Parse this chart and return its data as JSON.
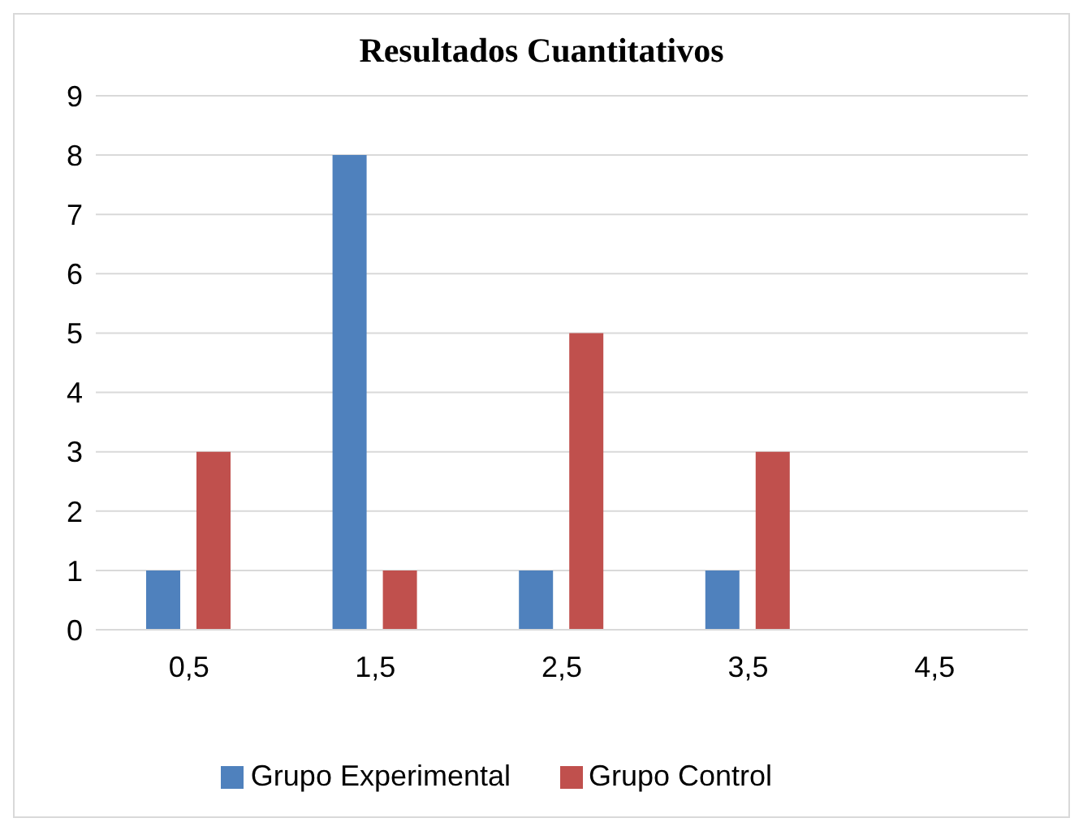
{
  "chart_data": {
    "type": "bar",
    "title": "Resultados Cuantitativos",
    "categories": [
      "0,5",
      "1,5",
      "2,5",
      "3,5",
      "4,5"
    ],
    "series": [
      {
        "name": "Grupo Experimental",
        "color": "#4f81bd",
        "values": [
          1,
          8,
          1,
          1,
          0
        ]
      },
      {
        "name": "Grupo Control",
        "color": "#c0504d",
        "values": [
          3,
          1,
          5,
          3,
          0
        ]
      }
    ],
    "ylim": [
      0,
      9
    ],
    "yticks": [
      0,
      1,
      2,
      3,
      4,
      5,
      6,
      7,
      8,
      9
    ],
    "grid": "y",
    "legend": "bottom"
  }
}
